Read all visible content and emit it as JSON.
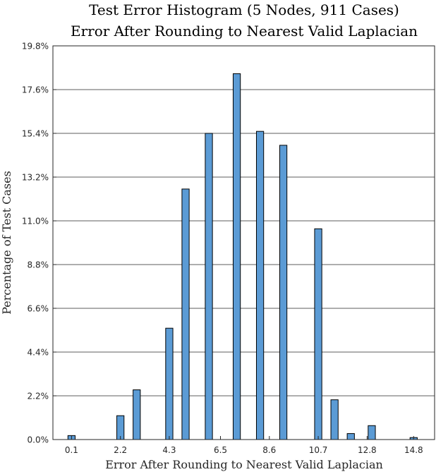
{
  "chart_data": {
    "type": "bar",
    "title": "Test Error Histogram (5 Nodes, 911 Cases)",
    "subtitle": "Error After Rounding to Nearest Valid Laplacian",
    "xlabel": "Error After Rounding to Nearest Valid Laplacian",
    "ylabel": "Percentage of Test Cases",
    "xlim": [
      -0.7,
      15.7
    ],
    "ylim": [
      0,
      19.8
    ],
    "grid": "horizontal",
    "bar_color": "#5b9bd5",
    "bar_edge_color": "#000000",
    "bar_width": 0.31,
    "x_ticks": [
      0.1,
      2.2,
      4.3,
      6.5,
      8.6,
      10.7,
      12.8,
      14.8
    ],
    "x_tick_labels": [
      "0.1",
      "2.2",
      "4.3",
      "6.5",
      "8.6",
      "10.7",
      "12.8",
      "14.8"
    ],
    "y_ticks": [
      0,
      2.2,
      4.4,
      6.6,
      8.8,
      11.0,
      13.2,
      15.4,
      17.6,
      19.8
    ],
    "y_tick_labels": [
      "0.0%",
      "2.2%",
      "4.4%",
      "6.6%",
      "8.8%",
      "11.0%",
      "13.2%",
      "15.4%",
      "17.6%",
      "19.8%"
    ],
    "bins": [
      0.1,
      2.2,
      2.9,
      4.3,
      5.0,
      6.0,
      7.2,
      8.2,
      9.2,
      10.7,
      11.4,
      12.1,
      13.0,
      14.8
    ],
    "values": [
      0.2,
      1.2,
      2.5,
      5.6,
      12.6,
      15.4,
      18.4,
      15.5,
      14.8,
      10.6,
      2.0,
      0.3,
      0.7,
      0.1
    ]
  }
}
